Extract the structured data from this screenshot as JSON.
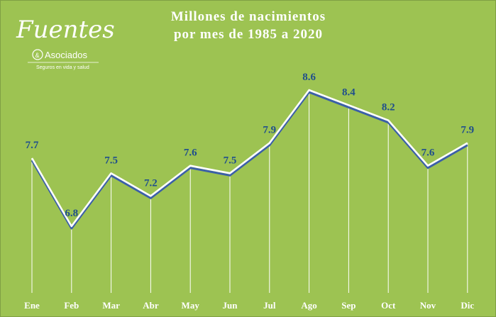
{
  "brand": {
    "name": "Fuentes",
    "amp": "&",
    "sub": "Asociados",
    "tagline": "Seguros en vida y salud"
  },
  "chart_data": {
    "type": "line",
    "title": "Millones de nacimientos por mes de 1985 a 2020",
    "title_lines": [
      "Millones  de  nacimientos",
      "por  mes  de  1985  a  2020"
    ],
    "categories": [
      "Ene",
      "Feb",
      "Mar",
      "Abr",
      "May",
      "Jun",
      "Jul",
      "Ago",
      "Sep",
      "Oct",
      "Nov",
      "Dic"
    ],
    "values": [
      7.7,
      6.8,
      7.5,
      7.2,
      7.6,
      7.5,
      7.9,
      8.6,
      8.4,
      8.2,
      7.6,
      7.9
    ],
    "labels": [
      "7.7",
      "6.8",
      "7.5",
      "7.2",
      "7.6",
      "7.5",
      "7.9",
      "8.6",
      "8.4",
      "8.2",
      "7.6",
      "7.9"
    ],
    "grid": false,
    "drop_lines": true,
    "colors": {
      "background": "#9dc352",
      "line": "#ffffff",
      "line_shadow": "#3b5fa8",
      "value_labels": "#1f4e8c",
      "category_labels": "#ffffff"
    }
  }
}
